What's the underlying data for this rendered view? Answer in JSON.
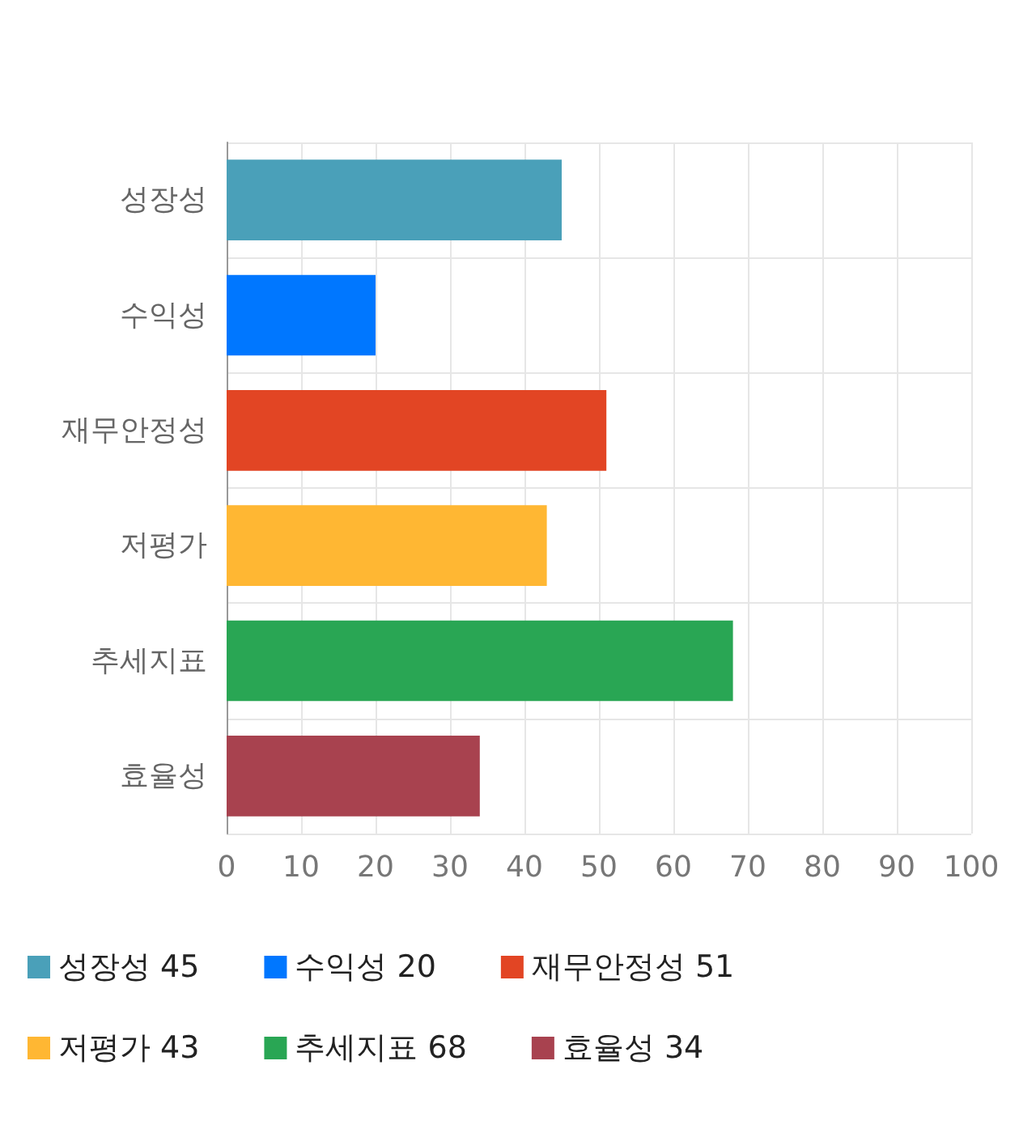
{
  "chart_data": {
    "type": "bar",
    "orientation": "horizontal",
    "stacked": true,
    "categories": [
      "성장성",
      "수익성",
      "재무안정성",
      "저평가",
      "추세지표",
      "효율성"
    ],
    "series": [
      {
        "name": "성장성 45",
        "color": "#4aa0b9",
        "values": [
          45,
          null,
          null,
          null,
          null,
          null
        ]
      },
      {
        "name": "수익성 20",
        "color": "#0077ff",
        "values": [
          null,
          20,
          null,
          null,
          null,
          null
        ]
      },
      {
        "name": "재무안정성 51",
        "color": "#e24524",
        "values": [
          null,
          null,
          51,
          null,
          null,
          null
        ]
      },
      {
        "name": "저평가 43",
        "color": "#ffb733",
        "values": [
          null,
          null,
          null,
          43,
          null,
          null
        ]
      },
      {
        "name": "추세지표 68",
        "color": "#29a654",
        "values": [
          null,
          null,
          null,
          null,
          68,
          null
        ]
      },
      {
        "name": "효율성 34",
        "color": "#a8424f",
        "values": [
          null,
          null,
          null,
          null,
          null,
          34
        ]
      }
    ],
    "xlim": [
      0,
      100
    ],
    "xticks": [
      0,
      10,
      20,
      30,
      40,
      50,
      60,
      70,
      80,
      90,
      100
    ],
    "grid": true,
    "legend": "bottom"
  }
}
